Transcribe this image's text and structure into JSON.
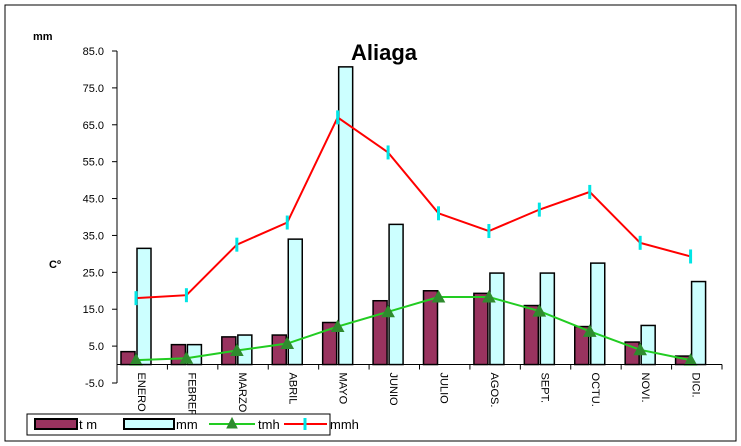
{
  "chart_data": {
    "type": "bar+line",
    "title": "Aliaga",
    "y_unit_top": "mm",
    "y_unit_left": "Cº",
    "ylim": [
      -5.0,
      85.0
    ],
    "y_ticks": [
      "85.0",
      "75.0",
      "65.0",
      "55.0",
      "45.0",
      "35.0",
      "25.0",
      "15.0",
      "5.0",
      "-5.0"
    ],
    "categories": [
      "ENERO",
      "FEBRERO",
      "MARZO",
      "ABRIL",
      "MAYO",
      "JUNIO",
      "JULIO",
      "AGOS.",
      "SEPT.",
      "OCTU.",
      "NOVI.",
      "DICI."
    ],
    "series": [
      {
        "name": "t m",
        "type": "bar",
        "color": "#99335f",
        "values": [
          3.5,
          5.4,
          7.5,
          8.0,
          11.4,
          17.3,
          20.0,
          19.3,
          16.0,
          10.3,
          6.1,
          2.3
        ]
      },
      {
        "name": "mm",
        "type": "bar",
        "color": "#ccffff",
        "values": [
          31.5,
          5.4,
          8.0,
          34.0,
          80.7,
          38.0,
          0,
          24.8,
          24.8,
          27.5,
          10.6,
          22.5
        ]
      },
      {
        "name": "tmh",
        "type": "line",
        "color": "#22cc22",
        "marker": "triangle",
        "values": [
          1.2,
          1.7,
          3.8,
          5.7,
          10.3,
          14.3,
          18.3,
          18.3,
          14.5,
          9.0,
          4.0,
          1.2
        ]
      },
      {
        "name": "mmh",
        "type": "line",
        "color": "#ff0000",
        "marker": "bar",
        "marker_color": "#00e5e5",
        "values": [
          18.0,
          18.8,
          32.5,
          38.5,
          67.0,
          57.5,
          41.0,
          36.2,
          42.0,
          46.8,
          33.0,
          29.3
        ]
      }
    ],
    "grid": false,
    "legend_position": "bottom"
  }
}
